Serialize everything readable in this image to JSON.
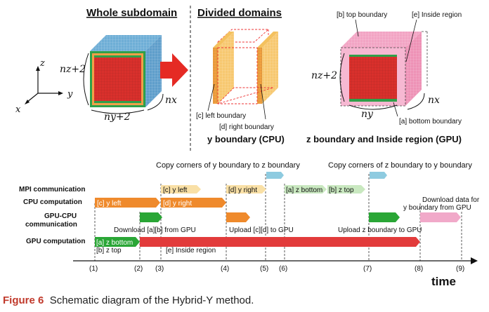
{
  "top": {
    "whole_subdomain": "Whole subdomain",
    "divided_domains": "Divided domains",
    "axis_z": "z",
    "axis_y": "y",
    "axis_x": "x",
    "nz2": "nz+2",
    "ny2": "ny+2",
    "nx": "nx",
    "ny": "ny",
    "label_c": "[c] left boundary",
    "label_d": "[d] right boundary",
    "y_boundary_cpu": "y boundary (CPU)",
    "label_b": "[b] top boundary",
    "label_e": "[e] Inside region",
    "label_a": "[a] bottom boundary",
    "z_boundary_gpu": "z boundary and Inside region (GPU)"
  },
  "timeline": {
    "copy_y_to_z": "Copy corners of y boundary to z boundary",
    "copy_z_to_y": "Copy corners of z boundary to y boundary",
    "row_mpi": "MPI communication",
    "row_cpu": "CPU computation",
    "row_gpucpu_1": "GPU-CPU",
    "row_gpucpu_2": "communication",
    "row_gpu": "GPU computation",
    "bar_c_y_left": "[c] y left",
    "bar_d_y_right": "[d] y right",
    "mpi_c_y_left": "[c] y left",
    "mpi_d_y_right": "[d] y right",
    "mpi_a_z_bottom": "[a] z bottom",
    "mpi_b_z_top": "[b] z top",
    "download_ab": "Download [a][b] from GPU",
    "upload_cd": "Upload [c][d] to GPU",
    "upload_z": "Upload z boundary to GPU",
    "download_y_1": "Download data for",
    "download_y_2": "y boundary from GPU",
    "gpu_a_z_bottom": "[a] z bottom",
    "gpu_b_z_top": "[b] z top",
    "gpu_e_inside": "[e] Inside region",
    "ticks": [
      "(1)",
      "(2)",
      "(3)",
      "(4)",
      "(5)",
      "(6)",
      "(7)",
      "(8)",
      "(9)"
    ],
    "time_label": "time"
  },
  "caption": {
    "label": "Figure 6",
    "text": "Schematic diagram of the Hybrid-Y method."
  },
  "colors": {
    "orange": "#ef8a2c",
    "green": "#2aa636",
    "red": "#e23b3b",
    "lightblue": "#8ecbe0",
    "lightorange": "#f9e0a6",
    "lightgreen": "#c9e8c0",
    "pink": "#f1a9c9",
    "cube_blue": "#6eaed6",
    "cube_red": "#d9302c"
  }
}
